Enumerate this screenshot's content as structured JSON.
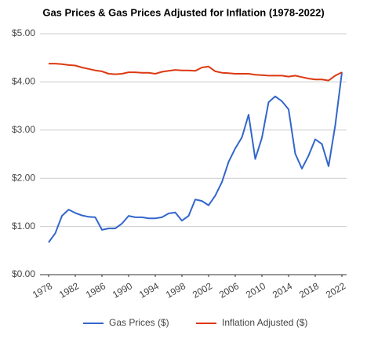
{
  "chart_data": {
    "type": "line",
    "title": "Gas Prices & Gas Prices Adjusted for Inflation (1978-2022)",
    "x": [
      1978,
      1979,
      1980,
      1981,
      1982,
      1983,
      1984,
      1985,
      1986,
      1987,
      1988,
      1989,
      1990,
      1991,
      1992,
      1993,
      1994,
      1995,
      1996,
      1997,
      1998,
      1999,
      2000,
      2001,
      2002,
      2003,
      2004,
      2005,
      2006,
      2007,
      2008,
      2009,
      2010,
      2011,
      2012,
      2013,
      2014,
      2015,
      2016,
      2017,
      2018,
      2019,
      2020,
      2021,
      2022
    ],
    "series": [
      {
        "name": "Gas Prices ($)",
        "color": "#3366cc",
        "values": [
          0.67,
          0.86,
          1.22,
          1.35,
          1.28,
          1.23,
          1.2,
          1.19,
          0.93,
          0.96,
          0.96,
          1.06,
          1.22,
          1.19,
          1.19,
          1.17,
          1.17,
          1.19,
          1.27,
          1.29,
          1.12,
          1.22,
          1.56,
          1.53,
          1.44,
          1.64,
          1.92,
          2.34,
          2.62,
          2.85,
          3.32,
          2.4,
          2.84,
          3.58,
          3.7,
          3.6,
          3.43,
          2.51,
          2.2,
          2.47,
          2.81,
          2.71,
          2.25,
          3.1,
          4.2
        ]
      },
      {
        "name": "Inflation Adjusted ($)",
        "color": "#dc3912",
        "values": [
          4.38,
          4.38,
          4.37,
          4.35,
          4.34,
          4.3,
          4.27,
          4.24,
          4.22,
          4.17,
          4.16,
          4.17,
          4.2,
          4.2,
          4.19,
          4.19,
          4.17,
          4.21,
          4.23,
          4.25,
          4.24,
          4.24,
          4.23,
          4.3,
          4.32,
          4.22,
          4.19,
          4.18,
          4.17,
          4.17,
          4.17,
          4.15,
          4.14,
          4.13,
          4.13,
          4.13,
          4.11,
          4.13,
          4.1,
          4.07,
          4.05,
          4.05,
          4.03,
          4.13,
          4.2
        ]
      }
    ],
    "xlim": [
      1978,
      2022
    ],
    "xticks": [
      1978,
      1982,
      1986,
      1990,
      1994,
      1998,
      2002,
      2006,
      2010,
      2014,
      2018,
      2022
    ],
    "ylim": [
      0,
      5
    ],
    "yticks": [
      {
        "value": 0,
        "label": "$0.00"
      },
      {
        "value": 1,
        "label": "$1.00"
      },
      {
        "value": 2,
        "label": "$2.00"
      },
      {
        "value": 3,
        "label": "$3.00"
      },
      {
        "value": 4,
        "label": "$4.00"
      },
      {
        "value": 5,
        "label": "$5.00"
      }
    ],
    "grid": true,
    "legend": "bottom"
  }
}
